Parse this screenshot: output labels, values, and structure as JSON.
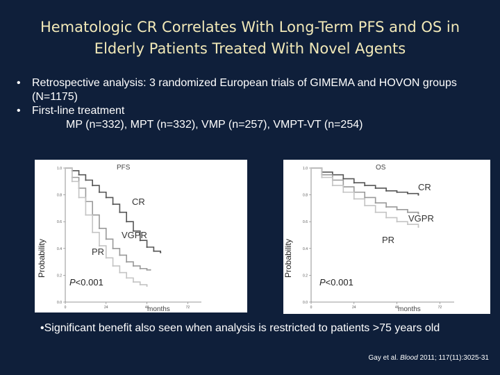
{
  "title": {
    "line1": "Hematologic CR Correlates With Long-Term PFS and OS in",
    "line2": "Elderly Patients Treated With Novel Agents"
  },
  "bullets": [
    {
      "text": "Retrospective analysis: 3 randomized European trials of GIMEMA and HOVON groups (N=1175)"
    },
    {
      "text": "First-line treatment"
    }
  ],
  "treatment_arms": "MP (n=332), MPT (n=332), VMP (n=257), VMPT-VT (n=254)",
  "bottom_bullet": "•Significant benefit also seen when analysis is restricted to patients >75 years old",
  "citation": {
    "authors": "Gay et al.",
    "journal": "Blood",
    "ref": " 2011; 117(11):3025-31"
  },
  "colors": {
    "background": "#0f1f3a",
    "title": "#f2e9b8",
    "text": "#ffffff",
    "cr": "#555555",
    "vgpr": "#999999",
    "pr": "#c4c4c4"
  },
  "chart_data": [
    {
      "type": "line",
      "title": "PFS",
      "xlabel": "months",
      "ylabel": "Probability",
      "xlim": [
        0,
        80
      ],
      "ylim": [
        0,
        1
      ],
      "xticks": [
        "0",
        "24",
        "48",
        "72"
      ],
      "yticks": [
        "0.0",
        "0.2",
        "0.4",
        "0.6",
        "0.8",
        "1.0"
      ],
      "annotation": "P<0.001",
      "series": [
        {
          "name": "CR",
          "x": [
            0,
            4,
            8,
            12,
            16,
            20,
            24,
            28,
            32,
            36,
            40,
            44,
            48,
            52,
            56
          ],
          "values": [
            1.0,
            0.98,
            0.95,
            0.91,
            0.87,
            0.82,
            0.78,
            0.73,
            0.67,
            0.6,
            0.53,
            0.46,
            0.41,
            0.38,
            0.37
          ]
        },
        {
          "name": "VGPR",
          "x": [
            0,
            4,
            8,
            12,
            16,
            20,
            24,
            28,
            32,
            36,
            40,
            44,
            48,
            50
          ],
          "values": [
            1.0,
            0.93,
            0.85,
            0.75,
            0.65,
            0.55,
            0.47,
            0.4,
            0.35,
            0.3,
            0.27,
            0.25,
            0.24,
            0.24
          ]
        },
        {
          "name": "PR",
          "x": [
            0,
            4,
            8,
            12,
            16,
            20,
            24,
            28,
            32,
            36,
            40,
            44,
            48
          ],
          "values": [
            1.0,
            0.9,
            0.78,
            0.65,
            0.52,
            0.42,
            0.33,
            0.27,
            0.22,
            0.18,
            0.15,
            0.13,
            0.12
          ]
        }
      ],
      "labels": {
        "cr": "CR",
        "vgpr": "VGPR",
        "pr": "PR"
      }
    },
    {
      "type": "line",
      "title": "OS",
      "xlabel": "months",
      "ylabel": "Probability",
      "xlim": [
        0,
        80
      ],
      "ylim": [
        0,
        1
      ],
      "xticks": [
        "0",
        "24",
        "48",
        "72"
      ],
      "yticks": [
        "0.0",
        "0.2",
        "0.4",
        "0.6",
        "0.8",
        "1.0"
      ],
      "annotation": "P<0.001",
      "series": [
        {
          "name": "CR",
          "x": [
            0,
            6,
            12,
            18,
            24,
            30,
            36,
            42,
            48,
            54,
            60
          ],
          "values": [
            1.0,
            0.97,
            0.95,
            0.92,
            0.89,
            0.87,
            0.85,
            0.83,
            0.82,
            0.81,
            0.8
          ]
        },
        {
          "name": "VGPR",
          "x": [
            0,
            6,
            12,
            18,
            24,
            30,
            36,
            42,
            48,
            54,
            60
          ],
          "values": [
            1.0,
            0.95,
            0.91,
            0.86,
            0.82,
            0.78,
            0.74,
            0.71,
            0.69,
            0.67,
            0.66
          ]
        },
        {
          "name": "PR",
          "x": [
            0,
            6,
            12,
            18,
            24,
            30,
            36,
            42,
            48,
            54,
            60
          ],
          "values": [
            1.0,
            0.93,
            0.87,
            0.82,
            0.77,
            0.72,
            0.67,
            0.63,
            0.6,
            0.58,
            0.56
          ]
        }
      ],
      "labels": {
        "cr": "CR",
        "vgpr": "VGPR",
        "pr": "PR"
      }
    }
  ]
}
